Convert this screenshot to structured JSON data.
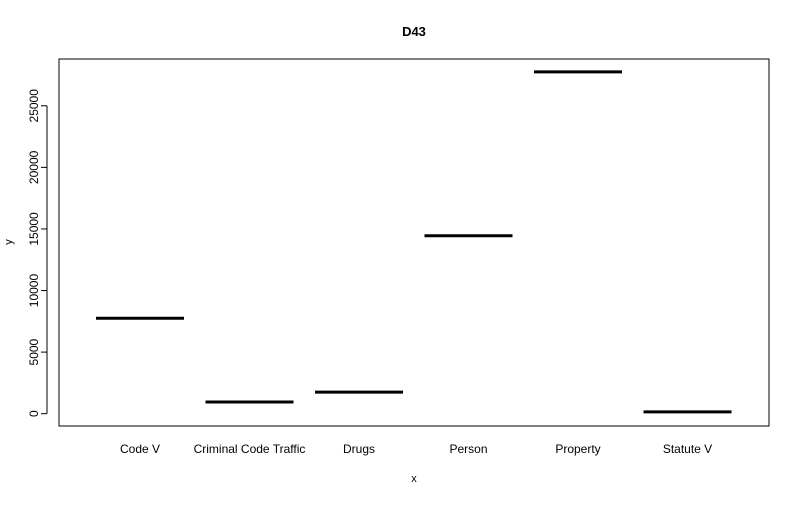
{
  "chart_data": {
    "type": "bar",
    "title": "D43",
    "xlabel": "x",
    "ylabel": "y",
    "categories": [
      "Code V",
      "Criminal Code Traffic",
      "Drugs",
      "Person",
      "Property",
      "Statute V"
    ],
    "values": [
      7750,
      950,
      1750,
      14450,
      27750,
      150
    ],
    "ylim": [
      -1000,
      28800
    ],
    "yticks": [
      0,
      5000,
      10000,
      15000,
      20000,
      25000
    ],
    "grid": false,
    "legend": "none",
    "mark_style": "horizontal-segment",
    "colors": {
      "mark": "#000000",
      "frame": "#000000",
      "background": "#ffffff"
    }
  }
}
